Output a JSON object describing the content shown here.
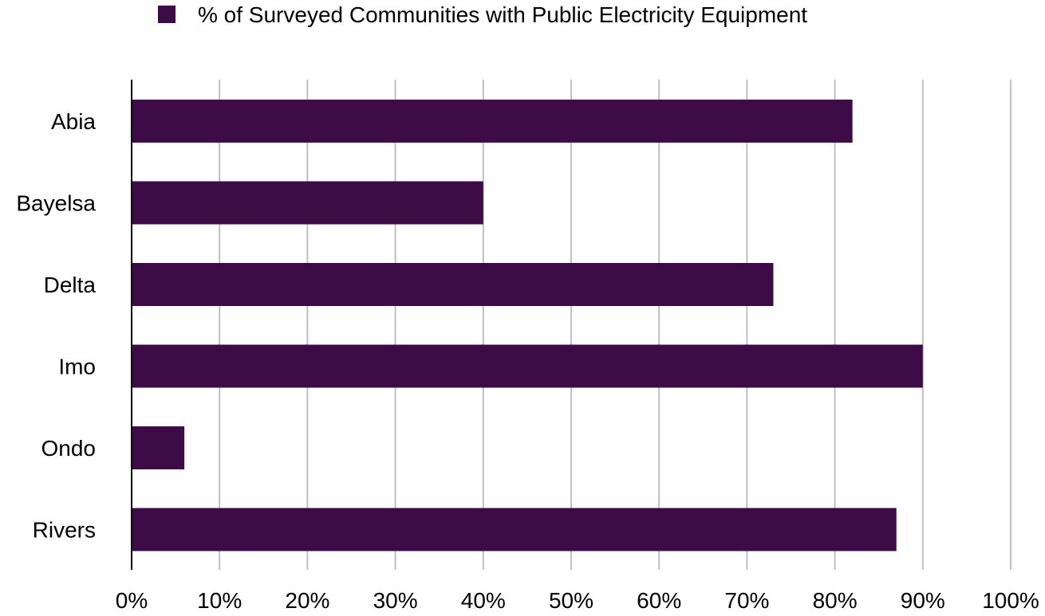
{
  "chart_data": {
    "type": "bar",
    "orientation": "horizontal",
    "categories": [
      "Abia",
      "Bayelsa",
      "Delta",
      "Imo",
      "Ondo",
      "Rivers"
    ],
    "series": [
      {
        "name": "% of Surveyed Communities with Public Electricity Equipment",
        "values": [
          82,
          40,
          73,
          90,
          6,
          87
        ],
        "color": "#3d0c47"
      }
    ],
    "xlim": [
      0,
      100
    ],
    "xticks": [
      0,
      10,
      20,
      30,
      40,
      50,
      60,
      70,
      80,
      90,
      100
    ],
    "xtick_labels": [
      "0%",
      "10%",
      "20%",
      "30%",
      "40%",
      "50%",
      "60%",
      "70%",
      "80%",
      "90%",
      "100%"
    ],
    "grid": true,
    "grid_color": "#c0c0c0",
    "legend_position": "top-center",
    "title": "",
    "xlabel": "",
    "ylabel": ""
  }
}
